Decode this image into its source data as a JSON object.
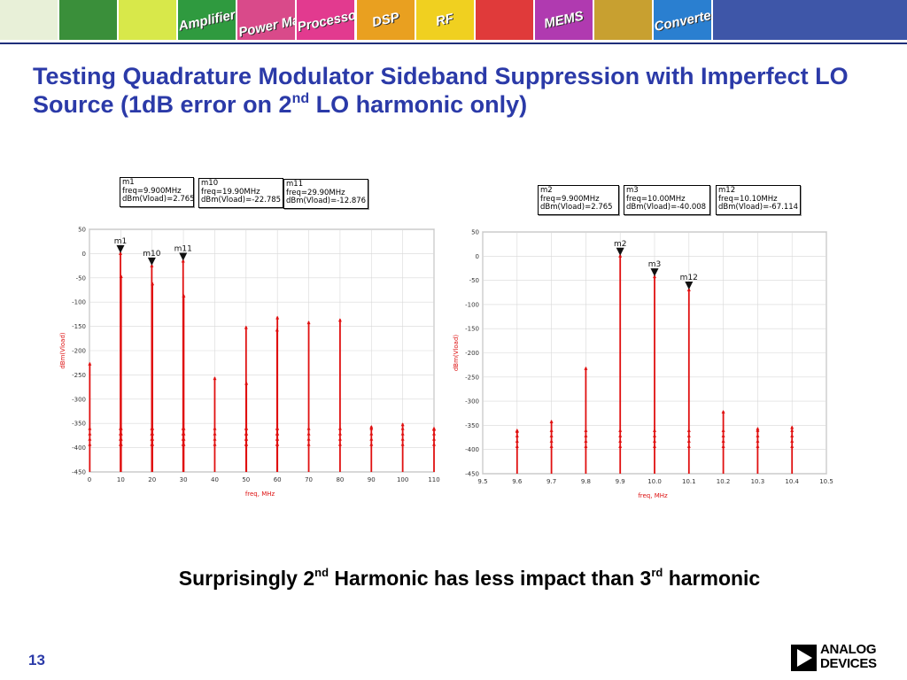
{
  "slide": {
    "title_part1": "Testing Quadrature Modulator Sideband Suppression with Imperfect LO Source (1dB error on 2",
    "title_sup": "nd",
    "title_part2": " LO harmonic only)",
    "subtitle_a": "Surprisingly 2",
    "subtitle_sup_a": "nd",
    "subtitle_b": " Harmonic has less impact than 3",
    "subtitle_sup_b": "rd",
    "subtitle_c": " harmonic",
    "page_number": "13",
    "logo_line1": "ANALOG",
    "logo_line2": "DEVICES"
  },
  "banner": {
    "tiles": [
      {
        "label": "",
        "color": "#e8f0d8"
      },
      {
        "label": "",
        "color": "#3a8f3a"
      },
      {
        "label": "",
        "color": "#d8e84a"
      },
      {
        "label": "Amplifiers",
        "color": "#2f9a3f"
      },
      {
        "label": "Power Management",
        "color": "#d94a8a"
      },
      {
        "label": "Processors",
        "color": "#e23a8f"
      },
      {
        "label": "DSP",
        "color": "#e9a020"
      },
      {
        "label": "RF",
        "color": "#f0d020"
      },
      {
        "label": "",
        "color": "#e03a3a"
      },
      {
        "label": "MEMS",
        "color": "#b03ab0"
      },
      {
        "label": "",
        "color": "#c8a030"
      },
      {
        "label": "Converters",
        "color": "#2a7fd0"
      }
    ]
  },
  "colors": {
    "trace": "#e01010",
    "title": "#2b3aa8",
    "axis_label": "#d11111"
  },
  "chart_data": [
    {
      "type": "line",
      "xlabel": "freq, MHz",
      "ylabel": "dBm(Vload)",
      "xlim": [
        0,
        110
      ],
      "ylim": [
        -450,
        50
      ],
      "xticks": [
        0,
        10,
        20,
        30,
        40,
        50,
        60,
        70,
        80,
        90,
        100,
        110
      ],
      "yticks": [
        50,
        0,
        -50,
        -100,
        -150,
        -200,
        -250,
        -300,
        -350,
        -400,
        -450
      ],
      "grid": true,
      "spectral_lines": [
        {
          "x": 0.1,
          "y": -225
        },
        {
          "x": 9.9,
          "y": 2.765
        },
        {
          "x": 10.1,
          "y": -45
        },
        {
          "x": 19.9,
          "y": -22.785
        },
        {
          "x": 20.1,
          "y": -60
        },
        {
          "x": 29.9,
          "y": -12.876
        },
        {
          "x": 30.1,
          "y": -85
        },
        {
          "x": 40,
          "y": -255
        },
        {
          "x": 50,
          "y": -150
        },
        {
          "x": 50.1,
          "y": -265
        },
        {
          "x": 60,
          "y": -130
        },
        {
          "x": 59.9,
          "y": -155
        },
        {
          "x": 70,
          "y": -140
        },
        {
          "x": 80,
          "y": -135
        },
        {
          "x": 90,
          "y": -355
        },
        {
          "x": 100,
          "y": -350
        },
        {
          "x": 110,
          "y": -360
        }
      ],
      "markers": [
        {
          "name": "m1",
          "x": 9.9,
          "y": 2.765
        },
        {
          "name": "m10",
          "x": 19.9,
          "y": -22.785
        },
        {
          "name": "m11",
          "x": 29.9,
          "y": -12.876
        }
      ]
    },
    {
      "type": "line",
      "xlabel": "freq, MHz",
      "ylabel": "dBm(Vload)",
      "xlim": [
        9.5,
        10.5
      ],
      "ylim": [
        -450,
        50
      ],
      "xticks": [
        9.5,
        9.6,
        9.7,
        9.8,
        9.9,
        10.0,
        10.1,
        10.2,
        10.3,
        10.4,
        10.5
      ],
      "xtick_labels": [
        "9.5",
        "9.6",
        "9.7",
        "9.8",
        "9.9",
        "10.0",
        "10.1",
        "10.2",
        "10.3",
        "10.4",
        "10.5"
      ],
      "yticks": [
        50,
        0,
        -50,
        -100,
        -150,
        -200,
        -250,
        -300,
        -350,
        -400,
        -450
      ],
      "grid": true,
      "spectral_lines": [
        {
          "x": 9.6,
          "y": -360
        },
        {
          "x": 9.7,
          "y": -340
        },
        {
          "x": 9.8,
          "y": -230
        },
        {
          "x": 9.9,
          "y": 2.765
        },
        {
          "x": 10.0,
          "y": -40.008
        },
        {
          "x": 10.1,
          "y": -67.114
        },
        {
          "x": 10.2,
          "y": -320
        },
        {
          "x": 10.3,
          "y": -355
        },
        {
          "x": 10.4,
          "y": -352
        }
      ],
      "markers": [
        {
          "name": "m2",
          "x": 9.9,
          "y": 2.765
        },
        {
          "name": "m3",
          "x": 10.0,
          "y": -40.008
        },
        {
          "name": "m12",
          "x": 10.1,
          "y": -67.114
        }
      ]
    }
  ],
  "marker_boxes": [
    {
      "name": "m1",
      "freq": "freq=9.900MHz",
      "value": "dBm(Vload)=2.765"
    },
    {
      "name": "m10",
      "freq": "freq=19.90MHz",
      "value": "dBm(Vload)=-22.785"
    },
    {
      "name": "m11",
      "freq": "freq=29.90MHz",
      "value": "dBm(Vload)=-12.876"
    },
    {
      "name": "m2",
      "freq": "freq=9.900MHz",
      "value": "dBm(Vload)=2.765"
    },
    {
      "name": "m3",
      "freq": "freq=10.00MHz",
      "value": "dBm(Vload)=-40.008"
    },
    {
      "name": "m12",
      "freq": "freq=10.10MHz",
      "value": "dBm(Vload)=-67.114"
    }
  ]
}
